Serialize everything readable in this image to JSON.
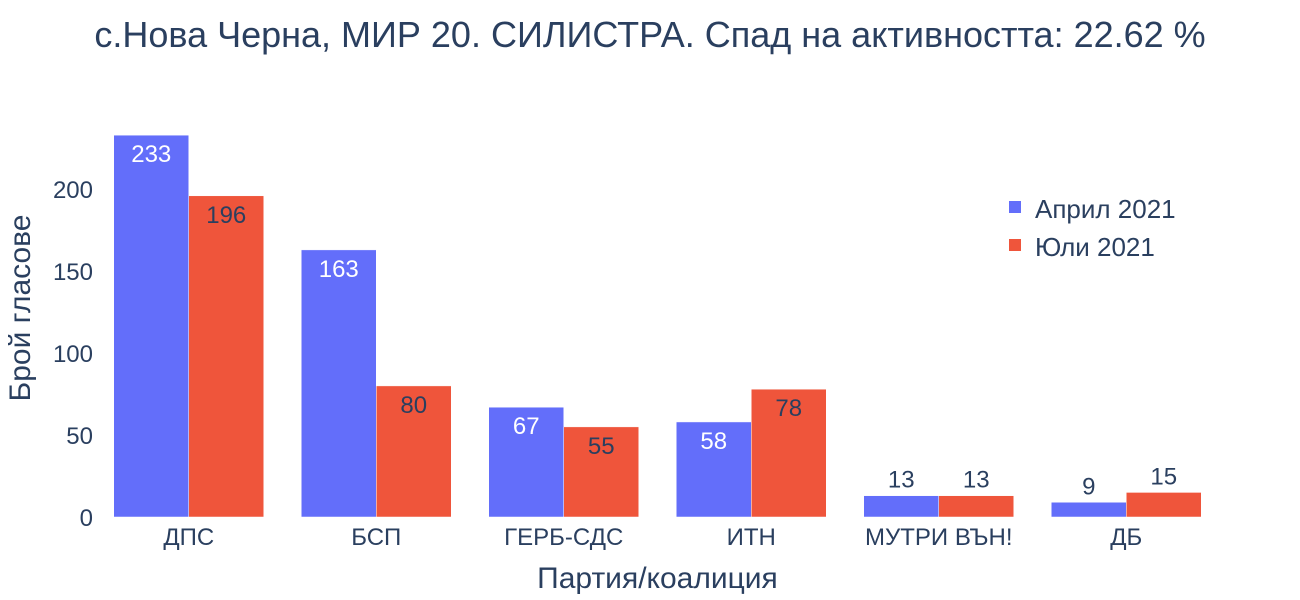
{
  "chart_data": {
    "type": "bar",
    "title": "с.Нова Черна, МИР 20. СИЛИСТРА. Спад на активността: 22.62 %",
    "xlabel": "Партия/коалиция",
    "ylabel": "Брой гласове",
    "categories": [
      "ДПС",
      "БСП",
      "ГЕРБ-СДС",
      "ИТН",
      "МУТРИ ВЪН!",
      "ДБ"
    ],
    "series": [
      {
        "name": "Април 2021",
        "color": "#636efa",
        "values": [
          233,
          163,
          67,
          58,
          13,
          9
        ]
      },
      {
        "name": "Юли 2021",
        "color": "#ef553b",
        "values": [
          196,
          80,
          55,
          78,
          13,
          15
        ]
      }
    ],
    "ylim": [
      0,
      245.3
    ],
    "yticks": [
      0,
      50,
      100,
      150,
      200
    ],
    "grid": false,
    "legend_position": "top-right"
  }
}
